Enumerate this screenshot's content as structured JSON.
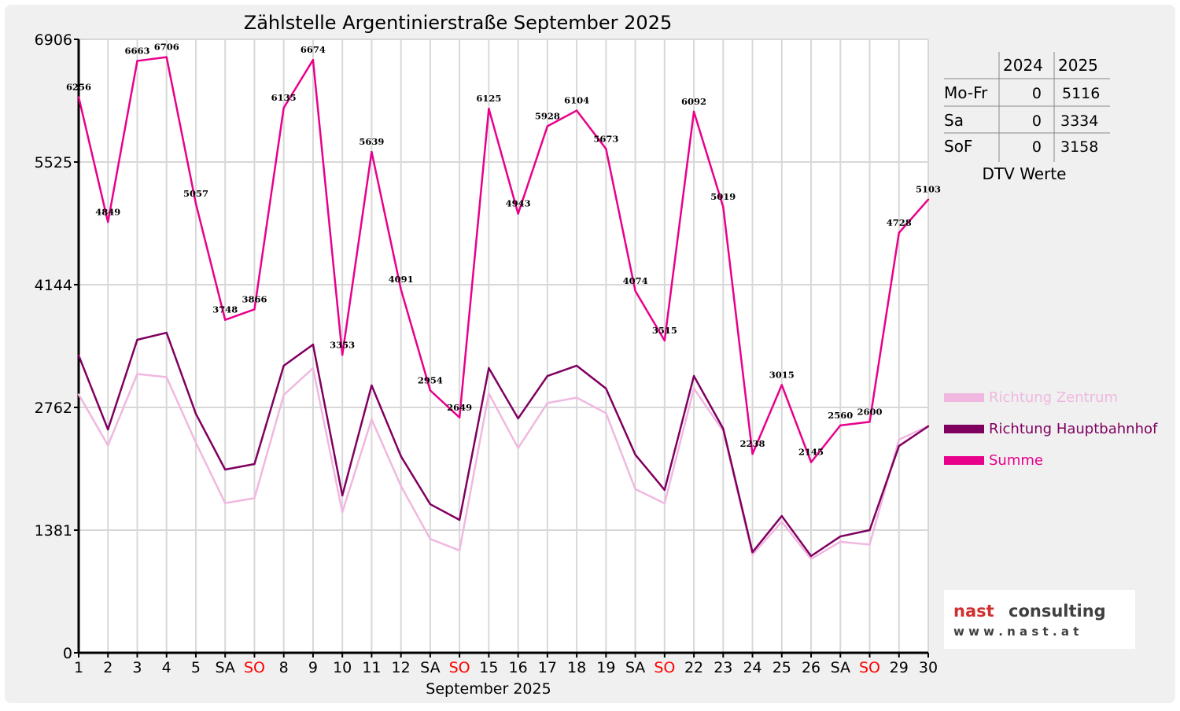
{
  "chart_data": {
    "type": "line",
    "title": "Zählstelle Argentinierstraße September 2025",
    "xlabel": "September 2025",
    "ylabel": "",
    "ylim": [
      0,
      6906
    ],
    "yticks": [
      0,
      1381,
      2762,
      4144,
      5525,
      6906
    ],
    "grid": true,
    "legend_position": "right",
    "x": [
      1,
      2,
      3,
      4,
      5,
      6,
      7,
      8,
      9,
      10,
      11,
      12,
      13,
      14,
      15,
      16,
      17,
      18,
      19,
      20,
      21,
      22,
      23,
      24,
      25,
      26,
      27,
      28,
      29,
      30
    ],
    "x_labels": [
      "1",
      "2",
      "3",
      "4",
      "5",
      "SA",
      "SO",
      "8",
      "9",
      "10",
      "11",
      "12",
      "SA",
      "SO",
      "15",
      "16",
      "17",
      "18",
      "19",
      "SA",
      "SO",
      "22",
      "23",
      "24",
      "25",
      "26",
      "SA",
      "SO",
      "29",
      "30"
    ],
    "sunday_color": "#ff0000",
    "series": [
      {
        "name": "Richtung Zentrum",
        "color": "#f0b8e0",
        "values": [
          2909,
          2335,
          3139,
          3103,
          2366,
          1685,
          1741,
          2903,
          3204,
          1582,
          2629,
          1878,
          1281,
          1153,
          2920,
          2305,
          2812,
          2872,
          2698,
          1843,
          1682,
          2976,
          2496,
          1105,
          1475,
          1056,
          1250,
          1219,
          2400,
          2553
        ]
      },
      {
        "name": "Richtung Hauptbahnhof",
        "color": "#800060",
        "values": [
          3347,
          2514,
          3524,
          3603,
          2691,
          2063,
          2125,
          3232,
          3470,
          1771,
          3010,
          2213,
          1673,
          1496,
          3205,
          2638,
          3116,
          3232,
          2975,
          2231,
          1833,
          3116,
          2523,
          1133,
          1540,
          1089,
          1310,
          1381,
          2328,
          2550
        ]
      },
      {
        "name": "Summe",
        "color": "#e8008c",
        "labeled": true,
        "values": [
          6256,
          4849,
          6663,
          6706,
          5057,
          3748,
          3866,
          6135,
          6674,
          3353,
          5639,
          4091,
          2954,
          2649,
          6125,
          4943,
          5928,
          6104,
          5673,
          4074,
          3515,
          6092,
          5019,
          2238,
          3015,
          2145,
          2560,
          2600,
          4728,
          5103
        ]
      }
    ]
  },
  "dtv_table": {
    "headers": [
      "",
      "2024",
      "2025"
    ],
    "rows": [
      [
        "Mo-Fr",
        "0",
        "5116"
      ],
      [
        "Sa",
        "0",
        "3334"
      ],
      [
        "SoF",
        "0",
        "3158"
      ]
    ],
    "caption": "DTV Werte"
  },
  "logo": {
    "name_red": "nast",
    "name_dark": "consulting",
    "url": "w w w . n a s t . a t"
  }
}
